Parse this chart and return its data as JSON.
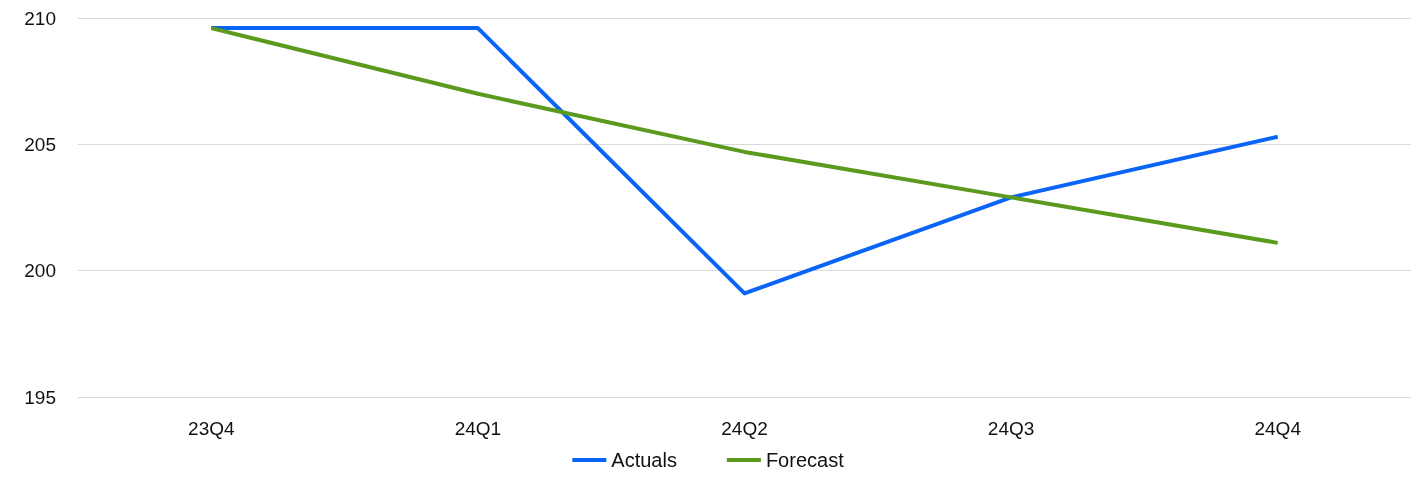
{
  "chart_data": {
    "type": "line",
    "categories": [
      "23Q4",
      "24Q1",
      "24Q2",
      "24Q3",
      "24Q4"
    ],
    "series": [
      {
        "name": "Actuals",
        "color": "#0a64f5",
        "values": [
          209.6,
          209.6,
          199.1,
          202.9,
          205.3
        ]
      },
      {
        "name": "Forecast",
        "color": "#5b9a1e",
        "values": [
          209.6,
          207.0,
          204.7,
          202.9,
          201.1
        ]
      }
    ],
    "ylim": [
      195,
      210
    ],
    "yticks": [
      195,
      200,
      205,
      210
    ],
    "grid": "y",
    "legend": "bottom",
    "marker": "none",
    "line_style": "solid"
  }
}
